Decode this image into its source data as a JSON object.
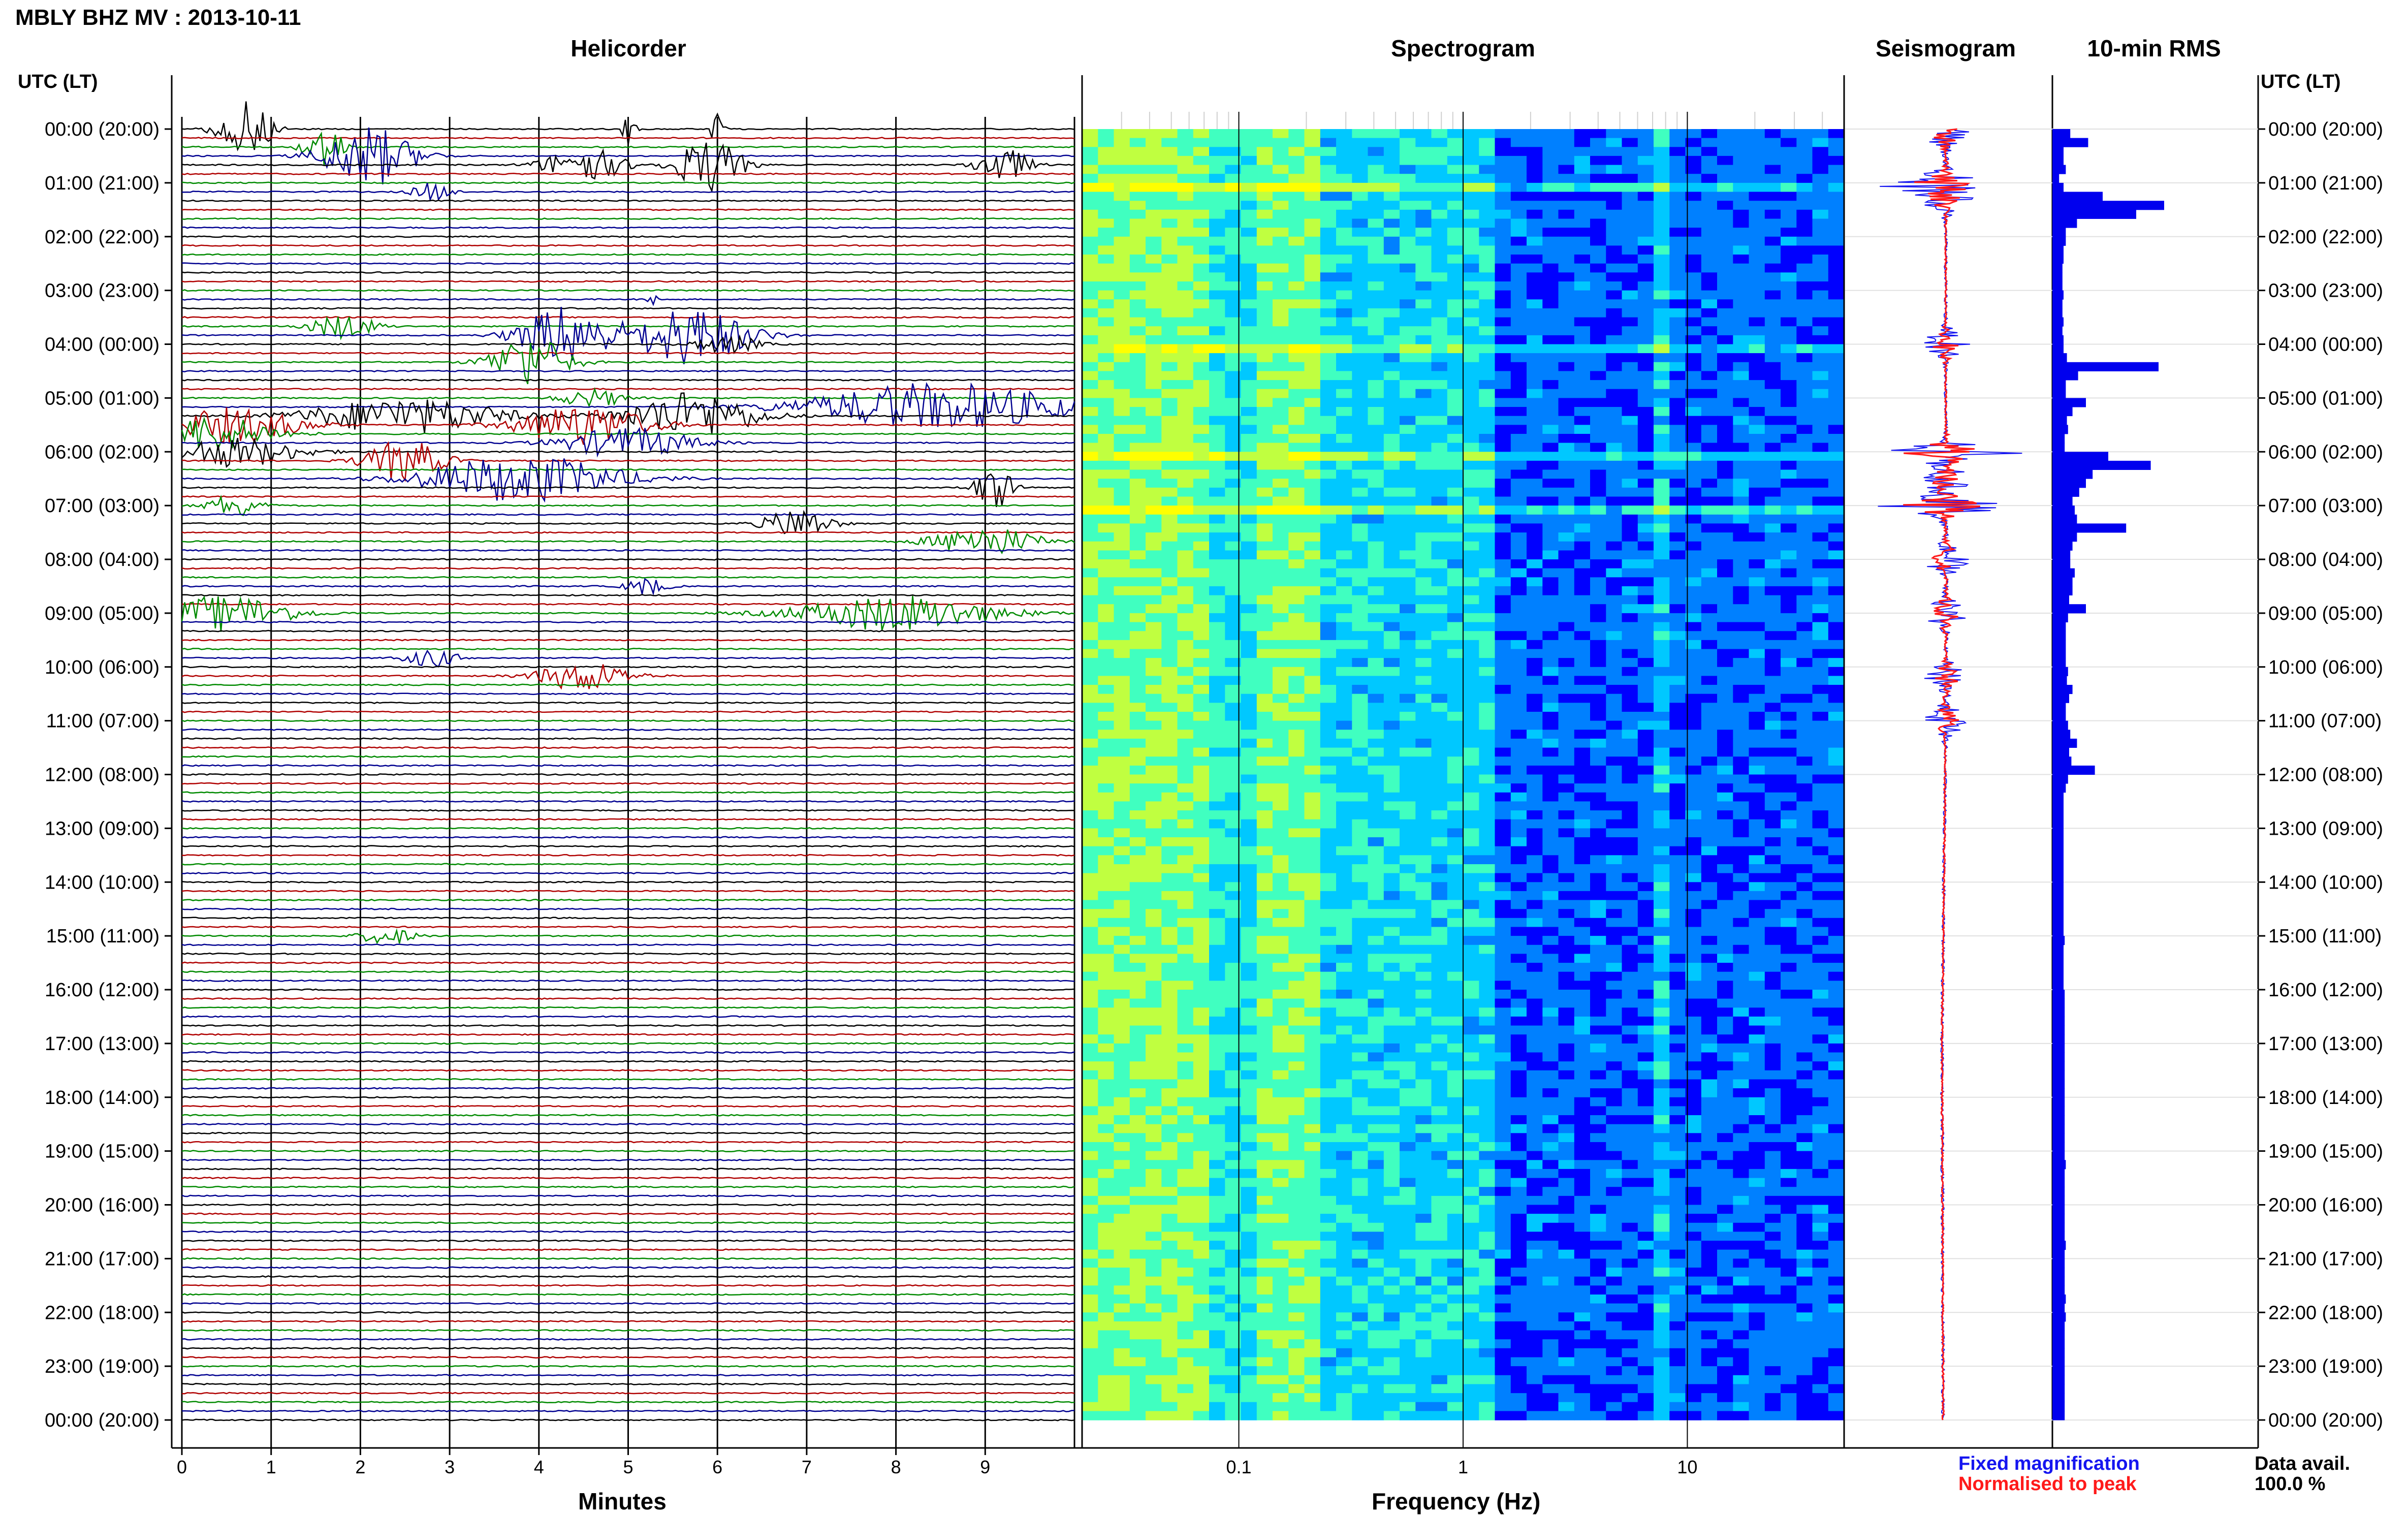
{
  "title": "MBLY BHZ MV : 2013-10-11",
  "panels": {
    "helicorder": "Helicorder",
    "spectrogram": "Spectrogram",
    "seismogram": "Seismogram",
    "rms": "10-min RMS"
  },
  "time_header_left": "UTC (LT)",
  "time_header_right": "UTC (LT)",
  "legend": {
    "fixed": "Fixed magnification",
    "normalised": "Normalised to peak"
  },
  "data_avail": {
    "label": "Data avail.",
    "value": "100.0 %"
  },
  "colors": {
    "trace_black": "#000000",
    "trace_red": "#b00000",
    "trace_green": "#008a00",
    "trace_blue": "#000090",
    "rms_bar": "#0000ee",
    "seis_fixed": "#1515f0",
    "seis_norm": "#ff1a1a"
  },
  "chart_data": [
    {
      "type": "line",
      "title": "Helicorder",
      "xlabel": "Minutes",
      "x_ticks": [
        "0",
        "1",
        "2",
        "3",
        "4",
        "5",
        "6",
        "7",
        "8",
        "9"
      ],
      "xlim": [
        0,
        10
      ],
      "time_labels": [
        "00:00 (20:00)",
        "01:00 (21:00)",
        "02:00 (22:00)",
        "03:00 (23:00)",
        "04:00 (00:00)",
        "05:00 (01:00)",
        "06:00 (02:00)",
        "07:00 (03:00)",
        "08:00 (04:00)",
        "09:00 (05:00)",
        "10:00 (06:00)",
        "11:00 (07:00)",
        "12:00 (08:00)",
        "13:00 (09:00)",
        "14:00 (10:00)",
        "15:00 (11:00)",
        "16:00 (12:00)",
        "17:00 (13:00)",
        "18:00 (14:00)",
        "19:00 (15:00)",
        "20:00 (16:00)",
        "21:00 (17:00)",
        "22:00 (18:00)",
        "23:00 (19:00)",
        "00:00 (20:00)"
      ],
      "lines_per_hour": 6,
      "line_color_cycle": [
        "black",
        "red",
        "green",
        "blue"
      ],
      "events": [
        {
          "line": 0,
          "minute": 0.7,
          "amp": 1.0,
          "dur": 0.4
        },
        {
          "line": 0,
          "minute": 5.0,
          "amp": 0.6,
          "dur": 0.1
        },
        {
          "line": 0,
          "minute": 6.0,
          "amp": 0.6,
          "dur": 0.1
        },
        {
          "line": 2,
          "minute": 1.6,
          "amp": 0.8,
          "dur": 0.3
        },
        {
          "line": 3,
          "minute": 2.1,
          "amp": 1.0,
          "dur": 0.7
        },
        {
          "line": 4,
          "minute": 4.5,
          "amp": 0.6,
          "dur": 0.6
        },
        {
          "line": 4,
          "minute": 5.9,
          "amp": 0.9,
          "dur": 0.5
        },
        {
          "line": 4,
          "minute": 9.2,
          "amp": 0.6,
          "dur": 0.4
        },
        {
          "line": 7,
          "minute": 2.8,
          "amp": 0.3,
          "dur": 0.3
        },
        {
          "line": 19,
          "minute": 5.3,
          "amp": 0.2,
          "dur": 0.1
        },
        {
          "line": 22,
          "minute": 1.8,
          "amp": 0.4,
          "dur": 0.5
        },
        {
          "line": 23,
          "minute": 4.3,
          "amp": 1.0,
          "dur": 0.7
        },
        {
          "line": 23,
          "minute": 5.7,
          "amp": 1.0,
          "dur": 0.9
        },
        {
          "line": 24,
          "minute": 6.1,
          "amp": 0.3,
          "dur": 0.5
        },
        {
          "line": 26,
          "minute": 3.9,
          "amp": 0.9,
          "dur": 0.6
        },
        {
          "line": 30,
          "minute": 4.6,
          "amp": 0.3,
          "dur": 0.5
        },
        {
          "line": 31,
          "minute": 8.5,
          "amp": 0.8,
          "dur": 2.0
        },
        {
          "line": 32,
          "minute": 2.5,
          "amp": 0.6,
          "dur": 1.5
        },
        {
          "line": 32,
          "minute": 5.7,
          "amp": 0.8,
          "dur": 1.0
        },
        {
          "line": 33,
          "minute": 0.6,
          "amp": 0.6,
          "dur": 1.0
        },
        {
          "line": 33,
          "minute": 4.5,
          "amp": 0.7,
          "dur": 1.0
        },
        {
          "line": 34,
          "minute": 0.3,
          "amp": 0.6,
          "dur": 1.0
        },
        {
          "line": 35,
          "minute": 5.0,
          "amp": 0.5,
          "dur": 1.0
        },
        {
          "line": 36,
          "minute": 0.6,
          "amp": 0.5,
          "dur": 1.0
        },
        {
          "line": 37,
          "minute": 2.5,
          "amp": 0.7,
          "dur": 0.6
        },
        {
          "line": 39,
          "minute": 3.8,
          "amp": 0.8,
          "dur": 1.5
        },
        {
          "line": 40,
          "minute": 9.1,
          "amp": 0.7,
          "dur": 0.3
        },
        {
          "line": 42,
          "minute": 0.6,
          "amp": 0.4,
          "dur": 0.4
        },
        {
          "line": 44,
          "minute": 6.9,
          "amp": 0.5,
          "dur": 0.5
        },
        {
          "line": 46,
          "minute": 9.0,
          "amp": 0.5,
          "dur": 0.8
        },
        {
          "line": 51,
          "minute": 5.2,
          "amp": 0.3,
          "dur": 0.3
        },
        {
          "line": 54,
          "minute": 0.5,
          "amp": 0.6,
          "dur": 1.0
        },
        {
          "line": 54,
          "minute": 8.0,
          "amp": 0.6,
          "dur": 1.5
        },
        {
          "line": 59,
          "minute": 2.8,
          "amp": 0.3,
          "dur": 0.4
        },
        {
          "line": 61,
          "minute": 4.5,
          "amp": 0.5,
          "dur": 0.7
        },
        {
          "line": 90,
          "minute": 2.3,
          "amp": 0.3,
          "dur": 0.4
        }
      ]
    },
    {
      "type": "heatmap",
      "title": "Spectrogram",
      "xlabel": "Frequency (Hz)",
      "x_scale": "log",
      "xlim": [
        0.02,
        50
      ],
      "x_tick_labels": [
        "0.1",
        "1",
        "10"
      ],
      "x_ticks": [
        0.1,
        1,
        10
      ],
      "colormap": [
        "#00008b",
        "#0000ff",
        "#0080ff",
        "#00c8ff",
        "#40ffc0",
        "#c0ff40",
        "#ffff00"
      ],
      "persistent_peak_hz": 8.2,
      "microseism_peak_hz": 0.17,
      "bright_rows_utc_hours": [
        1.0,
        4.0,
        6.0,
        7.0
      ]
    },
    {
      "type": "line",
      "title": "Seismogram",
      "series": [
        {
          "name": "Fixed magnification"
        },
        {
          "name": "Normalised to peak"
        }
      ],
      "active_hours_utc": [
        0.1,
        1.0,
        1.3,
        4.0,
        6.0,
        6.5,
        7.0,
        8.0,
        9.0,
        10.2,
        11.0
      ]
    },
    {
      "type": "bar",
      "title": "10-min RMS",
      "orientation": "horizontal",
      "bins_per_hour": 6,
      "values": [
        0.16,
        0.32,
        0.1,
        0.1,
        0.12,
        0.06,
        0.1,
        0.45,
        1.0,
        0.75,
        0.22,
        0.12,
        0.12,
        0.1,
        0.1,
        0.09,
        0.09,
        0.09,
        0.1,
        0.09,
        0.09,
        0.1,
        0.09,
        0.1,
        0.1,
        0.13,
        0.95,
        0.23,
        0.12,
        0.12,
        0.3,
        0.18,
        0.13,
        0.14,
        0.11,
        0.11,
        0.5,
        0.88,
        0.36,
        0.3,
        0.24,
        0.18,
        0.2,
        0.22,
        0.66,
        0.22,
        0.18,
        0.16,
        0.16,
        0.2,
        0.18,
        0.18,
        0.15,
        0.3,
        0.14,
        0.12,
        0.12,
        0.12,
        0.12,
        0.12,
        0.14,
        0.13,
        0.18,
        0.15,
        0.12,
        0.12,
        0.14,
        0.16,
        0.22,
        0.15,
        0.17,
        0.38,
        0.14,
        0.12,
        0.1,
        0.1,
        0.1,
        0.1,
        0.1,
        0.1,
        0.1,
        0.1,
        0.1,
        0.1,
        0.1,
        0.1,
        0.1,
        0.1,
        0.1,
        0.1,
        0.11,
        0.1,
        0.1,
        0.1,
        0.1,
        0.1,
        0.11,
        0.11,
        0.11,
        0.11,
        0.11,
        0.11,
        0.11,
        0.11,
        0.11,
        0.11,
        0.11,
        0.11,
        0.11,
        0.11,
        0.11,
        0.11,
        0.11,
        0.11,
        0.11,
        0.12,
        0.11,
        0.11,
        0.11,
        0.11,
        0.11,
        0.11,
        0.11,
        0.11,
        0.12,
        0.11,
        0.11,
        0.11,
        0.11,
        0.11,
        0.12,
        0.11,
        0.12,
        0.11,
        0.11,
        0.11,
        0.11,
        0.11,
        0.11,
        0.11,
        0.11,
        0.11,
        0.11,
        0.11
      ],
      "xlim": [
        0,
        1
      ]
    }
  ]
}
